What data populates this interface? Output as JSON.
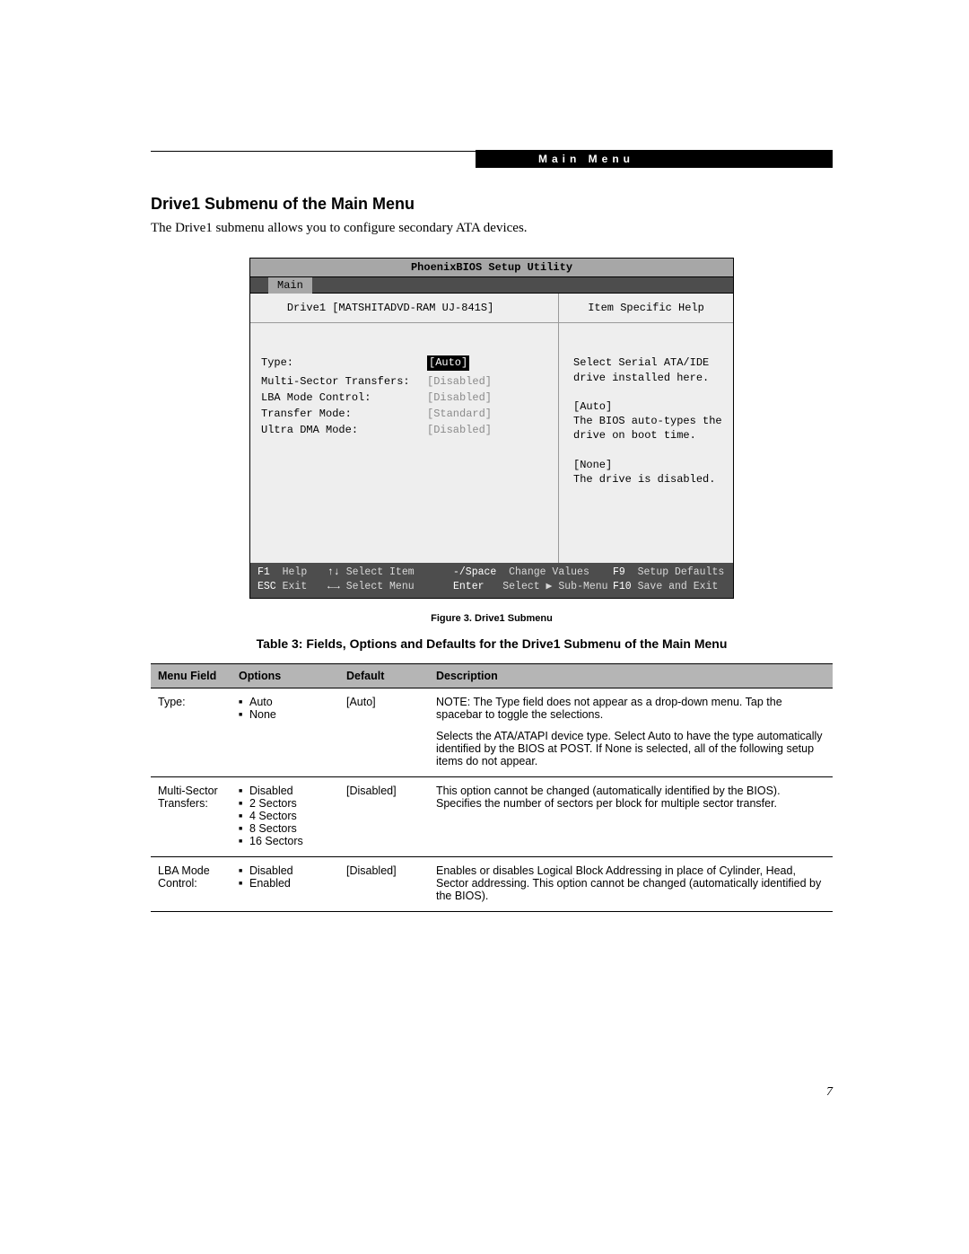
{
  "header_label": "Main Menu",
  "section_heading": "Drive1 Submenu of the Main Menu",
  "intro_text": "The Drive1 submenu allows you to configure secondary ATA devices.",
  "page_number": "7",
  "bios": {
    "title": "PhoenixBIOS Setup Utility",
    "tab": "Main",
    "sub_label_prefix": "Drive1",
    "sub_label_device": "[MATSHITADVD-RAM UJ-841S]",
    "help_title": "Item Specific Help",
    "rows": [
      {
        "label": "Type:",
        "value": "[Auto]",
        "selected": true
      },
      {
        "label": "",
        "value": ""
      },
      {
        "label": "Multi-Sector Transfers:",
        "value": "[Disabled]"
      },
      {
        "label": "LBA Mode Control:",
        "value": "[Disabled]"
      },
      {
        "label": "Transfer Mode:",
        "value": "[Standard]"
      },
      {
        "label": "Ultra DMA Mode:",
        "value": "[Disabled]"
      }
    ],
    "help_lines": [
      "Select Serial ATA/IDE",
      "drive installed here.",
      "",
      "[Auto]",
      "The BIOS auto-types the",
      "drive on boot time.",
      "",
      "[None]",
      "The drive is disabled."
    ],
    "footer": {
      "r1": {
        "k1": "F1",
        "t1": "Help",
        "k2": "↑↓",
        "t2": "Select Item",
        "k3": "-/Space",
        "t3": "Change Values",
        "k4": "F9",
        "t4": "Setup Defaults"
      },
      "r2": {
        "k1": "ESC",
        "t1": "Exit",
        "k2": "←→",
        "t2": "Select Menu",
        "k3": "Enter",
        "t3": "Select ▶ Sub-Menu",
        "k4": "F10",
        "t4": "Save and Exit"
      }
    }
  },
  "figure_caption": "Figure 3.  Drive1 Submenu",
  "table_caption": "Table 3: Fields, Options and Defaults for the Drive1 Submenu of the Main Menu",
  "table": {
    "columns": [
      "Menu Field",
      "Options",
      "Default",
      "Description"
    ],
    "rows": [
      {
        "menu_field": "Type:",
        "options": [
          "Auto",
          "None"
        ],
        "default": "[Auto]",
        "desc": [
          "NOTE: The Type field does not appear as a drop-down menu. Tap the spacebar to toggle the selections.",
          "Selects the ATA/ATAPI device type. Select Auto to have the type automatically identified by the BIOS at POST. If None is selected, all of the following setup items do not appear."
        ]
      },
      {
        "menu_field": "Multi-Sector Transfers:",
        "options": [
          "Disabled",
          "2 Sectors",
          "4 Sectors",
          "8 Sectors",
          "16 Sectors"
        ],
        "default": "[Disabled]",
        "desc": [
          "This option cannot be changed (automatically identified by the BIOS). Specifies the number of sectors per block for multiple sector transfer."
        ]
      },
      {
        "menu_field": "LBA Mode Control:",
        "options": [
          "Disabled",
          "Enabled"
        ],
        "default": "[Disabled]",
        "desc": [
          "Enables or disables Logical Block Addressing in place of Cylinder, Head, Sector addressing. This option cannot be changed (automatically identified by the BIOS)."
        ]
      }
    ]
  }
}
